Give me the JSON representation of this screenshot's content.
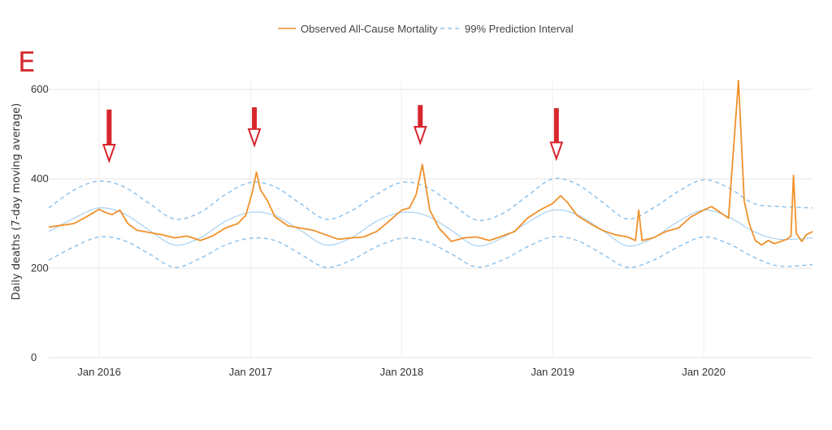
{
  "panel_label": "E",
  "colors": {
    "observed": "#f0912a",
    "interval": "#8ec3ee",
    "baseline": "#a9d1f2",
    "arrow": "#d8262c",
    "grid": "#e6e6e6"
  },
  "chart_data": {
    "type": "line",
    "ylabel": "Daily deaths (7-day moving average)",
    "ylim": [
      0,
      600
    ],
    "yticks": [
      0,
      200,
      400,
      600
    ],
    "xlim": [
      "2015-09-01",
      "2020-09-20"
    ],
    "xticks": [
      {
        "date": "2016-01-01",
        "label": "Jan 2016"
      },
      {
        "date": "2017-01-01",
        "label": "Jan 2017"
      },
      {
        "date": "2018-01-01",
        "label": "Jan 2018"
      },
      {
        "date": "2019-01-01",
        "label": "Jan 2019"
      },
      {
        "date": "2020-01-01",
        "label": "Jan 2020"
      }
    ],
    "legend": {
      "position": "top-center",
      "entries": [
        {
          "name": "Observed All-Cause Mortality",
          "style": "solid"
        },
        {
          "name": "99% Prediction Interval",
          "style": "dashed"
        }
      ]
    },
    "series": [
      {
        "name": "Observed All-Cause Mortality",
        "style": "solid",
        "x": [
          "2015-09-01",
          "2015-10-01",
          "2015-11-01",
          "2015-12-01",
          "2016-01-01",
          "2016-01-15",
          "2016-02-01",
          "2016-02-20",
          "2016-03-10",
          "2016-04-01",
          "2016-05-01",
          "2016-06-01",
          "2016-07-01",
          "2016-08-01",
          "2016-09-01",
          "2016-10-01",
          "2016-11-01",
          "2016-12-01",
          "2016-12-20",
          "2017-01-05",
          "2017-01-15",
          "2017-01-25",
          "2017-02-10",
          "2017-03-01",
          "2017-04-01",
          "2017-05-01",
          "2017-06-01",
          "2017-07-01",
          "2017-08-01",
          "2017-09-01",
          "2017-10-01",
          "2017-11-01",
          "2017-12-01",
          "2018-01-01",
          "2018-01-20",
          "2018-02-05",
          "2018-02-20",
          "2018-03-10",
          "2018-04-01",
          "2018-05-01",
          "2018-06-01",
          "2018-07-01",
          "2018-08-01",
          "2018-09-01",
          "2018-10-01",
          "2018-11-01",
          "2018-12-01",
          "2019-01-01",
          "2019-01-20",
          "2019-02-05",
          "2019-03-01",
          "2019-04-01",
          "2019-05-01",
          "2019-06-01",
          "2019-07-01",
          "2019-07-20",
          "2019-07-28",
          "2019-08-05",
          "2019-09-01",
          "2019-10-01",
          "2019-11-01",
          "2019-12-01",
          "2020-01-01",
          "2020-01-20",
          "2020-02-10",
          "2020-03-01",
          "2020-03-25",
          "2020-04-08",
          "2020-04-20",
          "2020-05-05",
          "2020-05-20",
          "2020-06-05",
          "2020-06-20",
          "2020-07-05",
          "2020-07-20",
          "2020-07-30",
          "2020-08-05",
          "2020-08-12",
          "2020-08-25",
          "2020-09-05",
          "2020-09-20"
        ],
        "y": [
          292,
          296,
          300,
          315,
          332,
          325,
          320,
          330,
          300,
          285,
          280,
          275,
          268,
          272,
          262,
          272,
          290,
          300,
          318,
          370,
          415,
          375,
          352,
          315,
          295,
          290,
          285,
          275,
          265,
          268,
          270,
          282,
          305,
          330,
          335,
          365,
          432,
          330,
          290,
          260,
          268,
          270,
          262,
          272,
          282,
          312,
          330,
          345,
          362,
          348,
          318,
          300,
          285,
          275,
          270,
          262,
          330,
          262,
          268,
          282,
          290,
          315,
          330,
          338,
          325,
          312,
          620,
          350,
          300,
          262,
          252,
          262,
          255,
          260,
          265,
          272,
          408,
          278,
          260,
          275,
          282
        ]
      },
      {
        "name": "99% Prediction Interval",
        "style": "dashed",
        "x": [
          "2015-09-01",
          "2015-11-01",
          "2016-01-01",
          "2016-03-01",
          "2016-05-01",
          "2016-07-01",
          "2016-09-01",
          "2016-11-01",
          "2017-01-01",
          "2017-03-01",
          "2017-05-01",
          "2017-07-01",
          "2017-09-01",
          "2017-11-01",
          "2018-01-01",
          "2018-03-01",
          "2018-05-01",
          "2018-07-01",
          "2018-09-01",
          "2018-11-01",
          "2019-01-01",
          "2019-03-01",
          "2019-05-01",
          "2019-07-01",
          "2019-09-01",
          "2019-11-01",
          "2020-01-01",
          "2020-03-01",
          "2020-05-01",
          "2020-07-01",
          "2020-09-20"
        ],
        "upper": [
          335,
          375,
          395,
          382,
          345,
          310,
          325,
          365,
          392,
          382,
          345,
          310,
          328,
          365,
          392,
          382,
          345,
          308,
          322,
          362,
          400,
          388,
          348,
          310,
          335,
          372,
          398,
          380,
          345,
          338,
          335
        ],
        "lower": [
          218,
          248,
          270,
          262,
          232,
          202,
          222,
          252,
          267,
          262,
          232,
          202,
          218,
          248,
          267,
          260,
          232,
          203,
          218,
          248,
          270,
          262,
          232,
          202,
          218,
          248,
          270,
          255,
          225,
          205,
          208
        ]
      },
      {
        "name": "",
        "style": "solid-thin",
        "x": [
          "2015-09-01",
          "2015-11-01",
          "2016-01-01",
          "2016-03-01",
          "2016-05-01",
          "2016-07-01",
          "2016-09-01",
          "2016-11-01",
          "2017-01-01",
          "2017-03-01",
          "2017-05-01",
          "2017-07-01",
          "2017-09-01",
          "2017-11-01",
          "2018-01-01",
          "2018-03-01",
          "2018-05-01",
          "2018-07-01",
          "2018-09-01",
          "2018-11-01",
          "2019-01-01",
          "2019-03-01",
          "2019-05-01",
          "2019-07-01",
          "2019-09-01",
          "2019-11-01",
          "2020-01-01",
          "2020-03-01",
          "2020-05-01",
          "2020-07-01",
          "2020-09-20"
        ],
        "y": [
          282,
          312,
          335,
          322,
          285,
          252,
          268,
          305,
          325,
          318,
          285,
          252,
          268,
          305,
          325,
          318,
          285,
          250,
          268,
          302,
          330,
          320,
          285,
          250,
          268,
          305,
          330,
          315,
          282,
          265,
          268
        ]
      }
    ],
    "annotations": [
      {
        "type": "arrow-down",
        "date": "2016-01-25",
        "y_from": 555,
        "y_to": 440
      },
      {
        "type": "arrow-down",
        "date": "2017-01-10",
        "y_from": 560,
        "y_to": 475
      },
      {
        "type": "arrow-down",
        "date": "2018-02-15",
        "y_from": 565,
        "y_to": 480
      },
      {
        "type": "arrow-down",
        "date": "2019-01-10",
        "y_from": 558,
        "y_to": 445
      }
    ]
  }
}
